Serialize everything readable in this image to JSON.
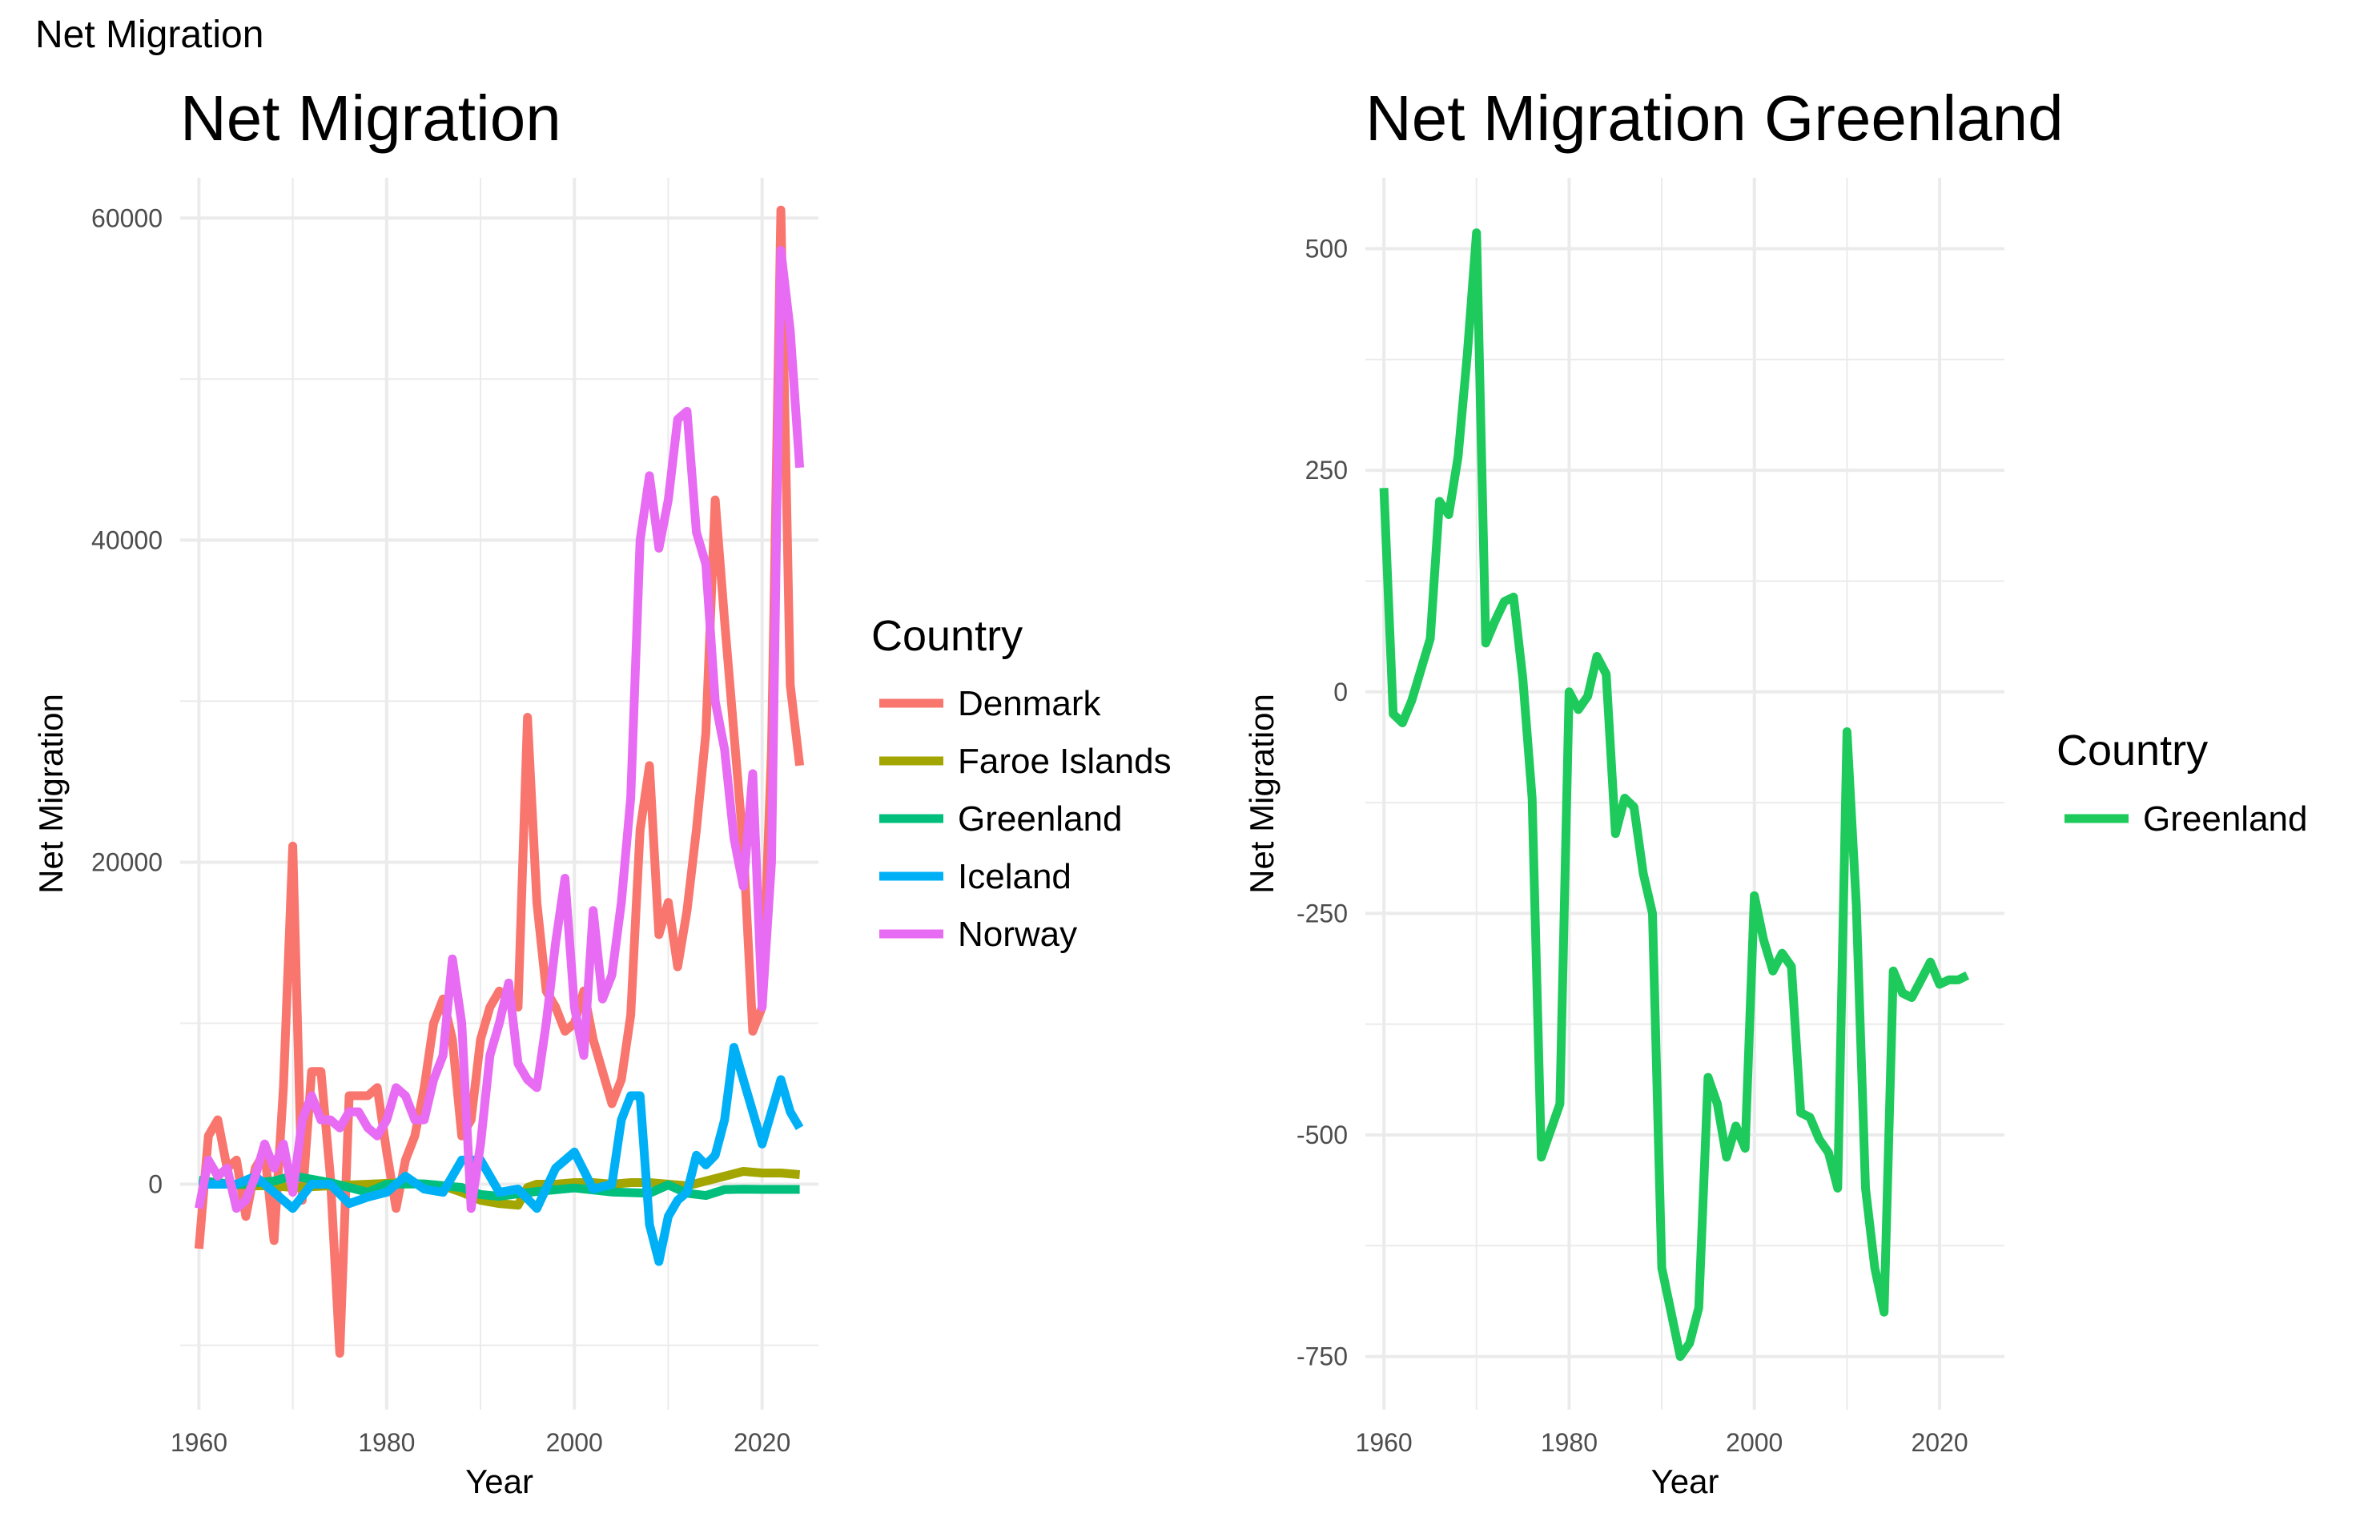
{
  "page_title": "Net Migration",
  "chart_data": [
    {
      "type": "line",
      "title": "Net Migration",
      "xlabel": "Year",
      "ylabel": "Net Migration",
      "xlim": [
        1958,
        2026
      ],
      "ylim": [
        -14000,
        62500
      ],
      "xticks": [
        1960,
        1980,
        2000,
        2020
      ],
      "yticks": [
        0,
        20000,
        40000,
        60000
      ],
      "grid": true,
      "legend": {
        "title": "Country",
        "position": "right"
      },
      "series": [
        {
          "name": "Denmark",
          "color": "#F8766D",
          "x": [
            1960,
            1961,
            1962,
            1963,
            1964,
            1965,
            1966,
            1967,
            1968,
            1969,
            1970,
            1971,
            1972,
            1973,
            1974,
            1975,
            1976,
            1977,
            1978,
            1979,
            1980,
            1981,
            1982,
            1983,
            1984,
            1985,
            1986,
            1987,
            1988,
            1989,
            1990,
            1991,
            1992,
            1993,
            1994,
            1995,
            1996,
            1997,
            1998,
            1999,
            2000,
            2001,
            2002,
            2003,
            2004,
            2005,
            2006,
            2007,
            2008,
            2009,
            2010,
            2011,
            2012,
            2013,
            2014,
            2015,
            2016,
            2017,
            2018,
            2019,
            2020,
            2021,
            2022,
            2023,
            2024
          ],
          "y": [
            -4000,
            3000,
            4000,
            1000,
            1500,
            -2000,
            1000,
            2000,
            -3500,
            6000,
            21000,
            -1000,
            7000,
            7000,
            500,
            -10500,
            5500,
            5500,
            5500,
            6000,
            2000,
            -1500,
            1500,
            3000,
            6000,
            10000,
            11500,
            9000,
            3000,
            4000,
            9000,
            11000,
            12000,
            11500,
            11000,
            29000,
            17500,
            12000,
            11000,
            9500,
            10000,
            12000,
            9000,
            7000,
            5000,
            6500,
            10500,
            22000,
            26000,
            15500,
            17500,
            13500,
            17000,
            22000,
            28000,
            42500,
            35000,
            28000,
            21000,
            9500,
            11000,
            27000,
            60500,
            31000,
            26000
          ]
        },
        {
          "name": "Faroe Islands",
          "color": "#A3A500",
          "x": [
            1960,
            1962,
            1964,
            1966,
            1968,
            1970,
            1972,
            1974,
            1976,
            1978,
            1980,
            1982,
            1984,
            1986,
            1988,
            1990,
            1992,
            1994,
            1995,
            1996,
            1998,
            2000,
            2002,
            2004,
            2006,
            2008,
            2010,
            2012,
            2014,
            2016,
            2018,
            2020,
            2022,
            2024
          ],
          "y": [
            0,
            0,
            0,
            -100,
            -100,
            -200,
            -150,
            -100,
            -50,
            0,
            50,
            100,
            0,
            -100,
            -500,
            -1000,
            -1200,
            -1300,
            -200,
            0,
            0,
            100,
            100,
            0,
            100,
            100,
            0,
            -100,
            200,
            500,
            800,
            700,
            700,
            600
          ]
        },
        {
          "name": "Greenland",
          "color": "#00BF7D",
          "x": [
            1960,
            1964,
            1968,
            1970,
            1974,
            1978,
            1980,
            1984,
            1988,
            1990,
            1992,
            1996,
            2000,
            2004,
            2008,
            2010,
            2012,
            2014,
            2016,
            2018,
            2020,
            2022,
            2024
          ],
          "y": [
            230,
            -30,
            200,
            520,
            100,
            -500,
            0,
            20,
            -200,
            -640,
            -750,
            -450,
            -230,
            -480,
            -560,
            -40,
            -560,
            -700,
            -330,
            -310,
            -320,
            -320,
            -320
          ]
        },
        {
          "name": "Iceland",
          "color": "#00B0F6",
          "x": [
            1960,
            1962,
            1964,
            1966,
            1968,
            1970,
            1972,
            1974,
            1976,
            1978,
            1980,
            1982,
            1984,
            1986,
            1988,
            1990,
            1992,
            1994,
            1996,
            1998,
            2000,
            2002,
            2004,
            2005,
            2006,
            2007,
            2008,
            2009,
            2010,
            2011,
            2012,
            2013,
            2014,
            2015,
            2016,
            2017,
            2018,
            2019,
            2020,
            2021,
            2022,
            2023,
            2024
          ],
          "y": [
            0,
            0,
            0,
            500,
            -500,
            -1500,
            0,
            0,
            -1200,
            -800,
            -500,
            500,
            -300,
            -500,
            1500,
            1500,
            -500,
            -300,
            -1500,
            1000,
            2000,
            -300,
            0,
            4000,
            5500,
            5500,
            -2500,
            -4800,
            -2000,
            -1000,
            -500,
            1800,
            1200,
            1800,
            4000,
            8500,
            6500,
            4500,
            2500,
            4500,
            6500,
            4500,
            3500
          ]
        },
        {
          "name": "Norway",
          "color": "#E76BF3",
          "x": [
            1960,
            1961,
            1962,
            1963,
            1964,
            1965,
            1966,
            1967,
            1968,
            1969,
            1970,
            1971,
            1972,
            1973,
            1974,
            1975,
            1976,
            1977,
            1978,
            1979,
            1980,
            1981,
            1982,
            1983,
            1984,
            1985,
            1986,
            1987,
            1988,
            1989,
            1990,
            1991,
            1992,
            1993,
            1994,
            1995,
            1996,
            1997,
            1998,
            1999,
            2000,
            2001,
            2002,
            2003,
            2004,
            2005,
            2006,
            2007,
            2008,
            2009,
            2010,
            2011,
            2012,
            2013,
            2014,
            2015,
            2016,
            2017,
            2018,
            2019,
            2020,
            2021,
            2022,
            2023,
            2024
          ],
          "y": [
            -1500,
            1500,
            500,
            1000,
            -1500,
            -1000,
            500,
            2500,
            1000,
            2500,
            -500,
            4000,
            5500,
            4000,
            4000,
            3500,
            4500,
            4500,
            3500,
            3000,
            4000,
            6000,
            5500,
            4000,
            4000,
            6500,
            8000,
            14000,
            10000,
            -1500,
            2500,
            8000,
            10000,
            12500,
            7500,
            6500,
            6000,
            10000,
            15000,
            19000,
            11000,
            8000,
            17000,
            11500,
            13000,
            17500,
            24000,
            40000,
            44000,
            39500,
            42500,
            47500,
            48000,
            40500,
            38500,
            30000,
            27000,
            21500,
            18500,
            25500,
            11000,
            20000,
            58000,
            53000,
            44500
          ]
        }
      ]
    },
    {
      "type": "line",
      "title": "Net Migration Greenland",
      "xlabel": "Year",
      "ylabel": "Net Migration",
      "xlim": [
        1958,
        2027
      ],
      "ylim": [
        -810,
        580
      ],
      "xticks": [
        1960,
        1980,
        2000,
        2020
      ],
      "yticks": [
        -750,
        -500,
        -250,
        0,
        250,
        500
      ],
      "grid": true,
      "legend": {
        "title": "Country",
        "position": "right"
      },
      "series": [
        {
          "name": "Greenland",
          "color": "#1DCA5B",
          "x": [
            1960,
            1961,
            1962,
            1963,
            1964,
            1965,
            1966,
            1967,
            1968,
            1969,
            1970,
            1971,
            1972,
            1973,
            1974,
            1975,
            1976,
            1977,
            1978,
            1979,
            1980,
            1981,
            1982,
            1983,
            1984,
            1985,
            1986,
            1987,
            1988,
            1989,
            1990,
            1991,
            1992,
            1993,
            1994,
            1995,
            1996,
            1997,
            1998,
            1999,
            2000,
            2001,
            2002,
            2003,
            2004,
            2005,
            2006,
            2007,
            2008,
            2009,
            2010,
            2011,
            2012,
            2013,
            2014,
            2015,
            2016,
            2017,
            2018,
            2019,
            2020,
            2021,
            2022,
            2023
          ],
          "y": [
            230,
            -25,
            -35,
            -10,
            25,
            60,
            215,
            200,
            265,
            380,
            518,
            55,
            80,
            102,
            107,
            15,
            -120,
            -525,
            -495,
            -465,
            0,
            -20,
            -5,
            40,
            20,
            -160,
            -120,
            -130,
            -205,
            -250,
            -650,
            -700,
            -750,
            -735,
            -695,
            -435,
            -465,
            -525,
            -490,
            -515,
            -230,
            -280,
            -315,
            -295,
            -310,
            -475,
            -480,
            -505,
            -520,
            -560,
            -45,
            -240,
            -560,
            -650,
            -700,
            -315,
            -340,
            -345,
            -325,
            -305,
            -330,
            -325,
            -325,
            -320
          ]
        }
      ]
    }
  ]
}
